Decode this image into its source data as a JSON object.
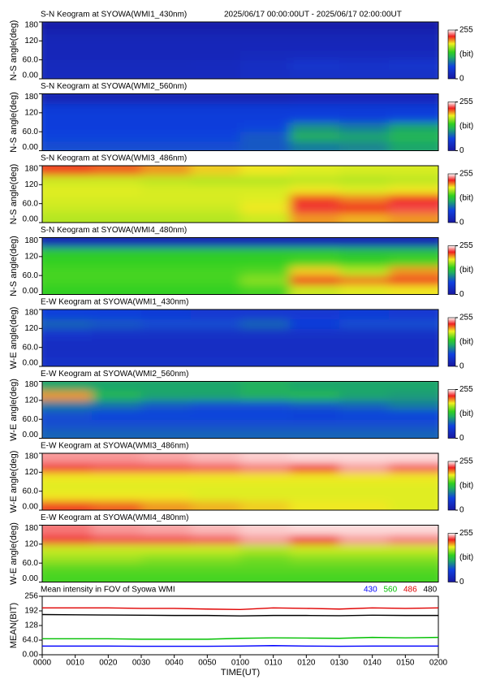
{
  "chart_data": [
    {
      "type": "heatmap",
      "title": "S-N Keogram at SYOWA(WMI1_430nm)",
      "subtitle": "2025/06/17 00:00:00UT - 2025/06/17 02:00:00UT",
      "ylabel": "N-S angle(deg)",
      "ylim": [
        0,
        180
      ],
      "yticks": [
        {
          "value": 0,
          "label": "0.00"
        },
        {
          "value": 60,
          "label": "60.0"
        },
        120,
        180
      ],
      "zlim": [
        0,
        255
      ],
      "zticks": [
        0,
        255
      ],
      "zlabel": "(bit)",
      "z": [
        [
          30,
          30,
          30,
          30,
          35,
          38,
          40,
          38
        ],
        [
          28,
          28,
          28,
          30,
          35,
          45,
          42,
          45
        ],
        [
          25,
          25,
          25,
          25,
          28,
          30,
          30,
          30
        ],
        [
          25,
          25,
          25,
          25,
          25,
          25,
          25,
          25
        ],
        [
          22,
          22,
          22,
          22,
          22,
          22,
          22,
          22
        ],
        [
          10,
          10,
          10,
          10,
          10,
          10,
          10,
          10
        ]
      ]
    },
    {
      "type": "heatmap",
      "title": "S-N Keogram at SYOWA(WMI2_560nm)",
      "ylabel": "N-S angle(deg)",
      "ylim": [
        0,
        180
      ],
      "yticks": [
        {
          "value": 0,
          "label": "0.00"
        },
        {
          "value": 60,
          "label": "60.0"
        },
        120,
        180
      ],
      "zlim": [
        0,
        255
      ],
      "zticks": [
        0,
        255
      ],
      "zlabel": "(bit)",
      "z": [
        [
          70,
          70,
          70,
          70,
          75,
          90,
          95,
          110
        ],
        [
          65,
          65,
          65,
          65,
          75,
          115,
          110,
          120
        ],
        [
          60,
          60,
          60,
          60,
          65,
          100,
          90,
          110
        ],
        [
          58,
          58,
          58,
          58,
          58,
          62,
          60,
          65
        ],
        [
          55,
          55,
          55,
          55,
          55,
          55,
          55,
          55
        ],
        [
          20,
          20,
          20,
          20,
          20,
          25,
          25,
          25
        ]
      ]
    },
    {
      "type": "heatmap",
      "title": "S-N Keogram at SYOWA(WMI3_486nm)",
      "ylabel": "N-S angle(deg)",
      "ylim": [
        0,
        180
      ],
      "yticks": [
        {
          "value": 0,
          "label": "0.00"
        },
        {
          "value": 60,
          "label": "60.0"
        },
        120,
        180
      ],
      "zlim": [
        0,
        255
      ],
      "zticks": [
        0,
        255
      ],
      "zlabel": "(bit)",
      "z": [
        [
          170,
          170,
          170,
          170,
          175,
          200,
          195,
          200
        ],
        [
          175,
          175,
          175,
          175,
          185,
          225,
          220,
          228
        ],
        [
          178,
          178,
          178,
          178,
          180,
          215,
          205,
          220
        ],
        [
          180,
          180,
          178,
          178,
          178,
          185,
          180,
          185
        ],
        [
          175,
          175,
          172,
          170,
          170,
          172,
          170,
          172
        ],
        [
          215,
          210,
          200,
          190,
          185,
          180,
          178,
          178
        ]
      ]
    },
    {
      "type": "heatmap",
      "title": "S-N Keogram at SYOWA(WMI4_480nm)",
      "ylabel": "N-S angle(deg)",
      "ylim": [
        0,
        180
      ],
      "yticks": [
        {
          "value": 0,
          "label": "0.00"
        },
        {
          "value": 60,
          "label": "60.0"
        },
        120,
        180
      ],
      "zlim": [
        0,
        255
      ],
      "zticks": [
        0,
        255
      ],
      "zlabel": "(bit)",
      "z": [
        [
          140,
          140,
          140,
          140,
          145,
          175,
          180,
          185
        ],
        [
          145,
          145,
          145,
          145,
          160,
          215,
          205,
          215
        ],
        [
          145,
          145,
          145,
          145,
          148,
          190,
          170,
          200
        ],
        [
          140,
          140,
          140,
          140,
          140,
          145,
          140,
          145
        ],
        [
          135,
          135,
          135,
          135,
          135,
          135,
          130,
          130
        ],
        [
          20,
          20,
          20,
          20,
          20,
          20,
          20,
          20
        ]
      ]
    },
    {
      "type": "heatmap",
      "title": "E-W Keogram at SYOWA(WMI1_430nm)",
      "ylabel": "W-E angle(deg)",
      "ylim": [
        0,
        180
      ],
      "yticks": [
        {
          "value": 0,
          "label": "0.00"
        },
        {
          "value": 60,
          "label": "60.0"
        },
        120,
        180
      ],
      "zlim": [
        0,
        255
      ],
      "zticks": [
        0,
        255
      ],
      "zlabel": "(bit)",
      "z": [
        [
          40,
          40,
          40,
          40,
          40,
          40,
          40,
          40
        ],
        [
          35,
          35,
          35,
          35,
          35,
          35,
          35,
          35
        ],
        [
          35,
          35,
          35,
          35,
          35,
          35,
          35,
          35
        ],
        [
          45,
          40,
          38,
          38,
          38,
          38,
          38,
          38
        ],
        [
          80,
          75,
          70,
          70,
          80,
          60,
          70,
          70
        ],
        [
          60,
          60,
          55,
          50,
          50,
          50,
          55,
          50
        ]
      ]
    },
    {
      "type": "heatmap",
      "title": "E-W Keogram at SYOWA(WMI2_560nm)",
      "ylabel": "W-E angle(deg)",
      "ylim": [
        0,
        180
      ],
      "yticks": [
        {
          "value": 0,
          "label": "0.00"
        },
        {
          "value": 60,
          "label": "60.0"
        },
        120,
        180
      ],
      "zlim": [
        0,
        255
      ],
      "zticks": [
        0,
        255
      ],
      "zlabel": "(bit)",
      "z": [
        [
          80,
          80,
          80,
          80,
          80,
          80,
          80,
          80
        ],
        [
          70,
          70,
          70,
          70,
          70,
          70,
          70,
          70
        ],
        [
          70,
          65,
          65,
          65,
          65,
          60,
          65,
          65
        ],
        [
          90,
          85,
          75,
          70,
          70,
          75,
          80,
          90
        ],
        [
          200,
          120,
          110,
          110,
          115,
          120,
          110,
          105
        ],
        [
          110,
          110,
          110,
          110,
          115,
          110,
          110,
          110
        ]
      ]
    },
    {
      "type": "heatmap",
      "title": "E-W Keogram at SYOWA(WMI3_486nm)",
      "ylabel": "W-E angle(deg)",
      "ylim": [
        0,
        180
      ],
      "yticks": [
        {
          "value": 0,
          "label": "0.00"
        },
        {
          "value": 60,
          "label": "60.0"
        },
        120,
        180
      ],
      "zlim": [
        0,
        255
      ],
      "zticks": [
        0,
        255
      ],
      "zlabel": "(bit)",
      "z": [
        [
          215,
          210,
          200,
          195,
          190,
          185,
          185,
          180
        ],
        [
          185,
          185,
          185,
          180,
          180,
          180,
          180,
          180
        ],
        [
          180,
          180,
          180,
          180,
          180,
          180,
          180,
          180
        ],
        [
          185,
          185,
          185,
          185,
          185,
          185,
          185,
          185
        ],
        [
          225,
          228,
          228,
          230,
          235,
          225,
          240,
          230
        ],
        [
          240,
          240,
          242,
          245,
          248,
          250,
          250,
          250
        ]
      ]
    },
    {
      "type": "heatmap",
      "title": "E-W Keogram at SYOWA(WMI4_480nm)",
      "ylabel": "W-E angle(deg)",
      "ylim": [
        0,
        180
      ],
      "yticks": [
        {
          "value": 0,
          "label": "0.00"
        },
        {
          "value": 60,
          "label": "60.0"
        },
        120,
        180
      ],
      "zlim": [
        0,
        255
      ],
      "zticks": [
        0,
        255
      ],
      "zlabel": "(bit)",
      "z": [
        [
          145,
          145,
          145,
          145,
          145,
          145,
          145,
          145
        ],
        [
          150,
          150,
          150,
          150,
          150,
          150,
          150,
          150
        ],
        [
          165,
          165,
          160,
          160,
          155,
          160,
          160,
          160
        ],
        [
          175,
          175,
          175,
          175,
          170,
          175,
          175,
          175
        ],
        [
          225,
          228,
          228,
          230,
          240,
          225,
          240,
          235
        ],
        [
          235,
          240,
          242,
          245,
          248,
          250,
          250,
          250
        ]
      ]
    },
    {
      "type": "line",
      "title": "Mean intensity in FOV of Syowa WMI",
      "ylabel": "MEAN(BIT)",
      "xlabel": "TIME(UT)",
      "ylim": [
        0,
        256
      ],
      "yticks": [
        {
          "value": 0,
          "label": "0.00"
        },
        {
          "value": 64,
          "label": "64.0"
        },
        128,
        192,
        256
      ],
      "xlim": [
        0,
        120
      ],
      "xticks": [
        {
          "value": 0,
          "label": "0000"
        },
        {
          "value": 10,
          "label": "0010"
        },
        {
          "value": 20,
          "label": "0020"
        },
        {
          "value": 30,
          "label": "0030"
        },
        {
          "value": 40,
          "label": "0040"
        },
        {
          "value": 50,
          "label": "0050"
        },
        {
          "value": 60,
          "label": "0100"
        },
        {
          "value": 70,
          "label": "0110"
        },
        {
          "value": 80,
          "label": "0120"
        },
        {
          "value": 90,
          "label": "0130"
        },
        {
          "value": 100,
          "label": "0140"
        },
        {
          "value": 110,
          "label": "0150"
        },
        {
          "value": 120,
          "label": "0200"
        }
      ],
      "x": [
        0,
        10,
        20,
        30,
        40,
        50,
        60,
        70,
        80,
        90,
        100,
        110,
        120
      ],
      "series": [
        {
          "name": "430",
          "color": "#0000ff",
          "values": [
            38,
            38,
            38,
            37,
            37,
            37,
            38,
            40,
            38,
            37,
            38,
            38,
            38
          ]
        },
        {
          "name": "560",
          "color": "#00c000",
          "values": [
            70,
            70,
            70,
            68,
            68,
            68,
            72,
            74,
            73,
            72,
            76,
            74,
            76
          ]
        },
        {
          "name": "486",
          "color": "#e00000",
          "values": [
            205,
            205,
            205,
            203,
            203,
            200,
            198,
            205,
            203,
            200,
            205,
            203,
            205
          ]
        },
        {
          "name": "480",
          "color": "#000000",
          "values": [
            176,
            175,
            174,
            173,
            172,
            172,
            170,
            172,
            172,
            171,
            173,
            172,
            172
          ]
        }
      ]
    }
  ]
}
